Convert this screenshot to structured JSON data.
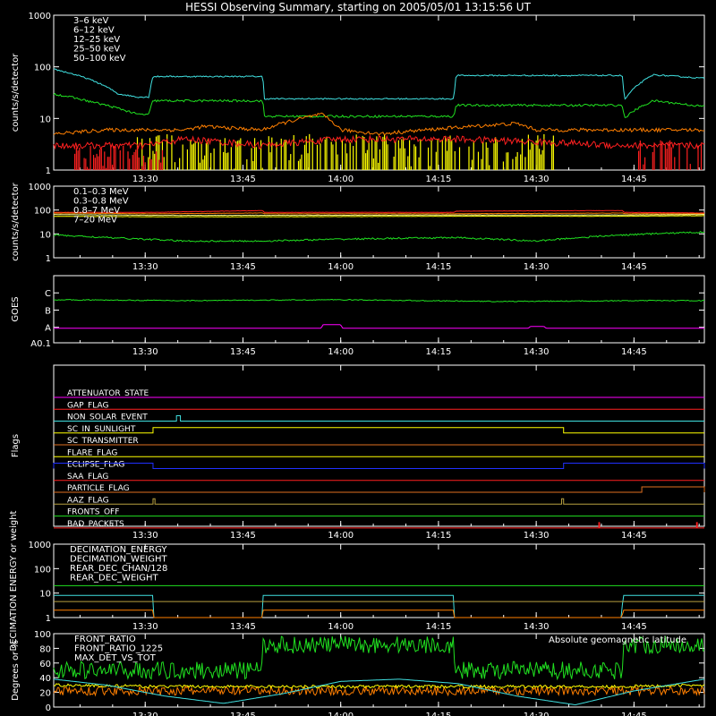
{
  "title": "HESSI Observing Summary, starting on 2005/05/01 13:15:56 UT",
  "time_ticks": [
    "13:30",
    "13:45",
    "14:00",
    "14:15",
    "14:30",
    "14:45"
  ],
  "colors": {
    "red": "#ff2020",
    "orange": "#ff7f00",
    "yellow": "#ffff00",
    "green": "#20e020",
    "cyan": "#40e0e0",
    "magenta": "#ff00ff",
    "blue": "#2030ff",
    "lightyellow": "#ffff90",
    "olive": "#b8a040",
    "darkorange": "#e07020"
  },
  "chart_data": [
    {
      "id": "p1",
      "type": "line",
      "scale": "log",
      "ylabel": "counts/s/detector",
      "ylim": [
        1,
        1000
      ],
      "yticks": [
        {
          "v": 1,
          "l": "1"
        },
        {
          "v": 10,
          "l": "10"
        },
        {
          "v": 100,
          "l": "100"
        },
        {
          "v": 1000,
          "l": "1000"
        }
      ],
      "legend": [
        {
          "label": "3–6 keV",
          "color": "red"
        },
        {
          "label": "6–12 keV",
          "color": "orange"
        },
        {
          "label": "12–25 keV",
          "color": "lightyellow"
        },
        {
          "label": "25–50 keV",
          "color": "green"
        },
        {
          "label": "50–100 keV",
          "color": "cyan"
        }
      ],
      "series": [
        {
          "color": "cyan",
          "noise": 0.03,
          "x": [
            13.266,
            13.35,
            13.43,
            13.48,
            13.51,
            13.52,
            13.8,
            13.805,
            14.29,
            14.295,
            14.72,
            14.725,
            14.8,
            14.9,
            14.93
          ],
          "y": [
            90,
            60,
            30,
            26,
            26,
            65,
            65,
            24,
            24,
            68,
            68,
            22,
            70,
            62,
            60
          ]
        },
        {
          "color": "green",
          "noise": 0.05,
          "x": [
            13.266,
            13.35,
            13.4,
            13.48,
            13.51,
            13.52,
            13.8,
            13.805,
            14.29,
            14.295,
            14.72,
            14.725,
            14.8,
            14.9,
            14.93
          ],
          "y": [
            30,
            22,
            18,
            12,
            12,
            22,
            22,
            11,
            11,
            18,
            18,
            10,
            22,
            18,
            17
          ]
        },
        {
          "color": "orange",
          "noise": 0.08,
          "x": [
            13.266,
            13.4,
            13.6,
            13.65,
            13.8,
            13.95,
            14.0,
            14.1,
            14.45,
            14.5,
            14.72,
            14.93
          ],
          "y": [
            5,
            6,
            6,
            7,
            6,
            12,
            6,
            5,
            8,
            6,
            6,
            6
          ]
        },
        {
          "color": "red",
          "noise": 0.15,
          "x": [
            13.266,
            13.5,
            13.6,
            13.8,
            14.0,
            14.3,
            14.72,
            14.8,
            14.93
          ],
          "y": [
            3,
            3,
            4,
            3,
            4,
            4,
            3,
            3,
            3
          ]
        }
      ],
      "bursts": [
        {
          "color": "yellow",
          "x0": 13.48,
          "x1": 14.55,
          "ymax": 5
        },
        {
          "color": "red",
          "x0": 13.3,
          "x1": 13.55,
          "ymax": 3
        },
        {
          "color": "red",
          "x0": 14.75,
          "x1": 14.93,
          "ymax": 4
        }
      ]
    },
    {
      "id": "p2",
      "type": "line",
      "scale": "log",
      "ylabel": "counts/s/detector",
      "ylim": [
        1,
        1000
      ],
      "yticks": [
        {
          "v": 1,
          "l": "1"
        },
        {
          "v": 10,
          "l": "10"
        },
        {
          "v": 100,
          "l": "100"
        },
        {
          "v": 1000,
          "l": "1000"
        }
      ],
      "legend": [
        {
          "label": "0.1–0.3 MeV",
          "color": "red"
        },
        {
          "label": "0.3–0.8 MeV",
          "color": "orange"
        },
        {
          "label": "0.8–7 MeV",
          "color": "lightyellow"
        },
        {
          "label": "7–20 MeV",
          "color": "yellow"
        }
      ],
      "series": [
        {
          "color": "red",
          "noise": 0.015,
          "x": [
            13.266,
            13.52,
            13.8,
            13.805,
            14.29,
            14.295,
            14.72,
            14.725,
            14.93
          ],
          "y": [
            80,
            80,
            95,
            80,
            80,
            90,
            95,
            80,
            75
          ]
        },
        {
          "color": "orange",
          "noise": 0.015,
          "x": [
            13.266,
            13.52,
            13.8,
            13.805,
            14.29,
            14.72,
            14.725,
            14.93
          ],
          "y": [
            75,
            70,
            75,
            70,
            70,
            75,
            70,
            70
          ]
        },
        {
          "color": "lightyellow",
          "noise": 0.015,
          "x": [
            13.266,
            13.52,
            13.8,
            14.29,
            14.72,
            14.93
          ],
          "y": [
            65,
            60,
            60,
            62,
            62,
            65
          ]
        },
        {
          "color": "yellow",
          "noise": 0.015,
          "x": [
            13.266,
            13.52,
            13.8,
            14.29,
            14.72,
            14.93
          ],
          "y": [
            55,
            52,
            52,
            55,
            55,
            58
          ]
        },
        {
          "color": "green",
          "noise": 0.08,
          "x": [
            13.266,
            13.4,
            13.6,
            13.8,
            14.0,
            14.29,
            14.5,
            14.72,
            14.93
          ],
          "y": [
            9,
            7,
            5,
            5,
            6,
            7,
            5,
            9,
            12
          ]
        }
      ]
    },
    {
      "id": "p3",
      "type": "line",
      "scale": "goes",
      "ylabel": "GOES",
      "ylim": [
        0.1,
        4
      ],
      "yticks": [
        {
          "v": 0.1,
          "l": "A0.1"
        },
        {
          "v": 1,
          "l": "A"
        },
        {
          "v": 2,
          "l": "B"
        },
        {
          "v": 3,
          "l": "C"
        }
      ],
      "series": [
        {
          "color": "green",
          "noise": 0.01,
          "x": [
            13.266,
            13.6,
            14.0,
            14.4,
            14.8,
            14.93
          ],
          "y": [
            2.6,
            2.55,
            2.6,
            2.5,
            2.55,
            2.55
          ]
        },
        {
          "color": "magenta",
          "noise": 0.0,
          "x": [
            13.266,
            13.95,
            13.955,
            14.0,
            14.005,
            14.48,
            14.485,
            14.52,
            14.525,
            14.93
          ],
          "y": [
            0.95,
            0.95,
            1.15,
            1.15,
            0.95,
            0.95,
            1.05,
            1.05,
            0.95,
            0.95
          ]
        }
      ]
    },
    {
      "id": "p4",
      "type": "flags",
      "ylabel": "Flags",
      "flags": [
        {
          "label": "ATTENUATOR_STATE",
          "color": "magenta",
          "on": []
        },
        {
          "label": "GAP_FLAG",
          "color": "red",
          "on": []
        },
        {
          "label": "NON_SOLAR_EVENT",
          "color": "cyan",
          "on": [
            [
              13.58,
              13.59
            ]
          ]
        },
        {
          "label": "SC_IN_SUNLIGHT",
          "color": "yellow",
          "on": [
            [
              13.52,
              14.57
            ]
          ]
        },
        {
          "label": "SC_TRANSMITTER",
          "color": "darkorange",
          "on": []
        },
        {
          "label": "FLARE_FLAG",
          "color": "yellow",
          "on": []
        },
        {
          "label": "ECLIPSE_FLAG",
          "color": "blue",
          "on": [
            [
              13.266,
              13.52
            ],
            [
              14.57,
              14.93
            ]
          ]
        },
        {
          "label": "SAA_FLAG",
          "color": "red",
          "on": []
        },
        {
          "label": "PARTICLE_FLAG",
          "color": "darkorange",
          "on": [
            [
              14.77,
              14.93
            ]
          ]
        },
        {
          "label": "AAZ_FLAG",
          "color": "olive",
          "on": [
            [
              13.52,
              13.525
            ],
            [
              14.565,
              14.57
            ]
          ]
        },
        {
          "label": "FRONTS_OFF",
          "color": "green",
          "on": []
        },
        {
          "label": "BAD_PACKETS",
          "color": "red",
          "on": [
            [
              14.66,
              14.662
            ],
            [
              14.91,
              14.912
            ]
          ]
        }
      ]
    },
    {
      "id": "p5",
      "type": "line",
      "scale": "log",
      "ylabel": "DECIMATION ENERGY or weight",
      "ylim": [
        1,
        1000
      ],
      "yticks": [
        {
          "v": 1,
          "l": "1"
        },
        {
          "v": 10,
          "l": "10"
        },
        {
          "v": 100,
          "l": "100"
        },
        {
          "v": 1000,
          "l": "1000"
        }
      ],
      "legend": [
        {
          "label": "DECIMATION_ENERGY",
          "color": "green"
        },
        {
          "label": "DECIMATION_WEIGHT",
          "color": "orange"
        },
        {
          "label": "REAR_DEC_CHAN/128",
          "color": "cyan"
        },
        {
          "label": "REAR_DEC_WEIGHT",
          "color": "olive"
        }
      ],
      "series": [
        {
          "color": "green",
          "noise": 0.0,
          "x": [
            13.266,
            14.93
          ],
          "y": [
            20,
            20
          ]
        },
        {
          "color": "cyan",
          "noise": 0.0,
          "x": [
            13.266,
            13.52,
            13.521,
            13.8,
            13.801,
            14.29,
            14.291,
            14.72,
            14.721,
            14.93
          ],
          "y": [
            8,
            8,
            1,
            1,
            8,
            8,
            1,
            1,
            8,
            8
          ]
        },
        {
          "color": "orange",
          "noise": 0.0,
          "x": [
            13.266,
            13.52,
            13.521,
            13.8,
            13.801,
            14.29,
            14.291,
            14.72,
            14.721,
            14.93
          ],
          "y": [
            2,
            2,
            1,
            1,
            2,
            2,
            1,
            1,
            2,
            2
          ]
        },
        {
          "color": "olive",
          "noise": 0.0,
          "x": [
            13.266,
            14.93
          ],
          "y": [
            4.5,
            4.5
          ]
        }
      ]
    },
    {
      "id": "p6",
      "type": "line",
      "scale": "linear",
      "ylabel": "Degrees or %",
      "ylim": [
        0,
        100
      ],
      "yticks": [
        {
          "v": 0,
          "l": "0"
        },
        {
          "v": 20,
          "l": "20"
        },
        {
          "v": 40,
          "l": "40"
        },
        {
          "v": 60,
          "l": "60"
        },
        {
          "v": 80,
          "l": "80"
        },
        {
          "v": 100,
          "l": "100"
        }
      ],
      "legend": [
        {
          "label": "FRONT_RATIO",
          "color": "yellow"
        },
        {
          "label": "FRONT_RATIO_1225",
          "color": "green"
        },
        {
          "label": "MAX_DET_VS_TOT",
          "color": "orange"
        }
      ],
      "legend_right": {
        "label": "Absolute geomagnetic latitude",
        "color": "cyan"
      },
      "series": [
        {
          "color": "green",
          "noise": 12,
          "abs": true,
          "x": [
            13.266,
            13.52,
            13.521,
            13.8,
            13.801,
            14.29,
            14.291,
            14.72,
            14.721,
            14.93
          ],
          "y": [
            50,
            50,
            50,
            50,
            85,
            85,
            50,
            50,
            85,
            85
          ]
        },
        {
          "color": "orange",
          "noise": 6,
          "abs": true,
          "x": [
            13.266,
            14.93
          ],
          "y": [
            22,
            22
          ]
        },
        {
          "color": "yellow",
          "noise": 2,
          "abs": true,
          "x": [
            13.266,
            13.52,
            13.8,
            14.29,
            14.72,
            14.93
          ],
          "y": [
            30,
            28,
            28,
            28,
            28,
            30
          ]
        },
        {
          "color": "cyan",
          "noise": 0,
          "abs": true,
          "x": [
            13.266,
            13.4,
            13.55,
            13.7,
            13.85,
            14.0,
            14.15,
            14.3,
            14.45,
            14.6,
            14.75,
            14.93
          ],
          "y": [
            38,
            30,
            15,
            5,
            18,
            35,
            38,
            32,
            15,
            3,
            22,
            38
          ]
        }
      ]
    }
  ]
}
